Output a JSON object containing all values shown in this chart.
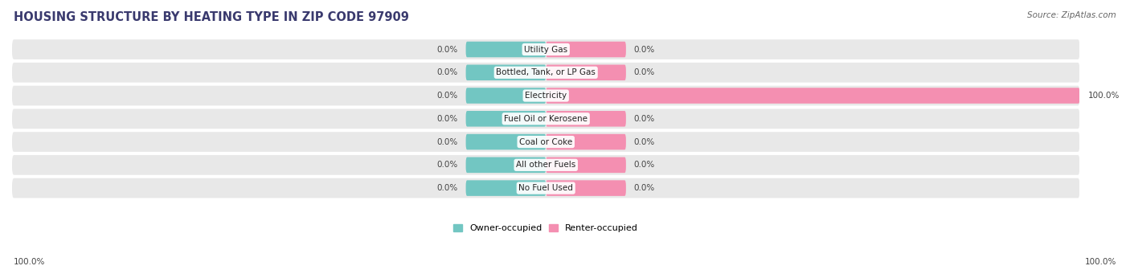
{
  "title": "HOUSING STRUCTURE BY HEATING TYPE IN ZIP CODE 97909",
  "source": "Source: ZipAtlas.com",
  "categories": [
    "Utility Gas",
    "Bottled, Tank, or LP Gas",
    "Electricity",
    "Fuel Oil or Kerosene",
    "Coal or Coke",
    "All other Fuels",
    "No Fuel Used"
  ],
  "owner_values": [
    0.0,
    0.0,
    0.0,
    0.0,
    0.0,
    0.0,
    0.0
  ],
  "renter_values": [
    0.0,
    0.0,
    100.0,
    0.0,
    0.0,
    0.0,
    0.0
  ],
  "owner_color": "#72C6C2",
  "renter_color": "#F48FB1",
  "row_bg_color": "#e8e8e8",
  "title_color": "#3a3a6e",
  "title_fontsize": 10.5,
  "source_fontsize": 7.5,
  "label_fontsize": 7.5,
  "value_fontsize": 7.5,
  "legend_fontsize": 8,
  "xlim": [
    -100,
    100
  ],
  "left_axis_label": "100.0%",
  "right_axis_label": "100.0%",
  "min_bar_width": 15
}
